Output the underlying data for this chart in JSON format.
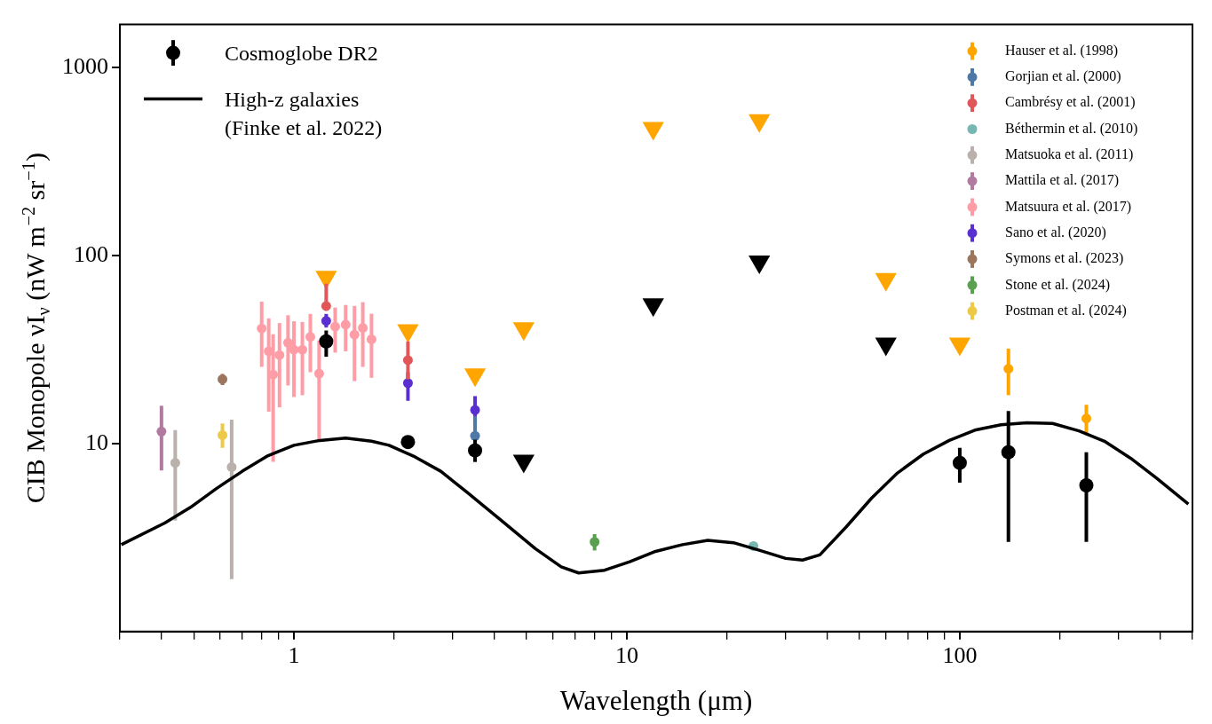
{
  "chart_data": {
    "type": "scatter",
    "xlabel": "Wavelength (μm)",
    "ylabel": "CIB Monopole νI$_{ν}$ (nW m$^{−2}$ sr$^{−1}$)",
    "log": "xy",
    "xlim": [
      0.3,
      500
    ],
    "ylim": [
      1,
      1700
    ],
    "xticks": [
      {
        "value": 0.3,
        "label": null
      },
      {
        "value": 0.4,
        "label": null
      },
      {
        "value": 0.5,
        "label": null
      },
      {
        "value": 0.6,
        "label": null
      },
      {
        "value": 0.7,
        "label": null
      },
      {
        "value": 0.8,
        "label": null
      },
      {
        "value": 0.9,
        "label": null
      },
      1,
      {
        "value": 2,
        "label": null
      },
      {
        "value": 3,
        "label": null
      },
      {
        "value": 4,
        "label": null
      },
      {
        "value": 5,
        "label": null
      },
      {
        "value": 6,
        "label": null
      },
      {
        "value": 7,
        "label": null
      },
      {
        "value": 8,
        "label": null
      },
      {
        "value": 9,
        "label": null
      },
      10,
      {
        "value": 20,
        "label": null
      },
      {
        "value": 30,
        "label": null
      },
      {
        "value": 40,
        "label": null
      },
      {
        "value": 50,
        "label": null
      },
      {
        "value": 60,
        "label": null
      },
      {
        "value": 70,
        "label": null
      },
      {
        "value": 80,
        "label": null
      },
      {
        "value": 90,
        "label": null
      },
      100,
      {
        "value": 200,
        "label": null
      },
      {
        "value": 300,
        "label": null
      },
      {
        "value": 400,
        "label": null
      },
      {
        "value": 500,
        "label": null
      }
    ],
    "yticks": [
      10,
      100,
      1000
    ],
    "grid": false,
    "legend": "top",
    "marker": "circle",
    "series": [
      {
        "name": "Cosmoglobe DR2",
        "color": "#000000",
        "x": [
          1.25,
          2.2,
          3.5,
          100,
          140,
          240
        ],
        "values": [
          35,
          10.2,
          9.2,
          7.9,
          9.0,
          6.0
        ],
        "errors": [
          [
            29,
            40
          ],
          [
            9.4,
            11
          ],
          [
            8,
            10.5
          ],
          [
            6.2,
            9.5
          ],
          [
            3.0,
            14.9
          ],
          [
            3.0,
            9.0
          ]
        ]
      },
      {
        "name": "High-z galaxies (Finke et al. 2022)",
        "type": "line",
        "color": "#000000",
        "marker": "none",
        "line_style": "solid",
        "x": [
          0.303,
          0.409,
          0.489,
          0.585,
          0.7,
          0.836,
          1.0,
          1.196,
          1.43,
          1.71,
          1.93,
          2.31,
          2.76,
          3.3,
          4.19,
          5.31,
          6.35,
          7.16,
          8.57,
          10.2,
          12.2,
          14.7,
          17.5,
          20.9,
          25.1,
          30.0,
          33.7,
          38.0,
          45.5,
          54.4,
          65.0,
          77.8,
          93.0,
          111,
          133,
          159,
          190,
          228,
          272,
          326,
          390,
          486
        ],
        "values": [
          2.9,
          3.78,
          4.58,
          5.77,
          7.13,
          8.63,
          9.8,
          10.4,
          10.7,
          10.3,
          9.8,
          8.5,
          7.13,
          5.54,
          3.91,
          2.76,
          2.21,
          2.05,
          2.12,
          2.35,
          2.67,
          2.9,
          3.06,
          2.97,
          2.7,
          2.45,
          2.4,
          2.56,
          3.59,
          5.14,
          6.98,
          8.8,
          10.4,
          11.8,
          12.6,
          12.9,
          12.8,
          11.7,
          10.3,
          8.36,
          6.56,
          4.77
        ]
      },
      {
        "name": "Hauser et al. (1998)",
        "color": "#ffa500",
        "x": [
          140,
          240
        ],
        "values": [
          25,
          13.6
        ],
        "errors": [
          [
            18.1,
            32
          ],
          [
            11.1,
            16.1
          ]
        ]
      },
      {
        "name": "Gorjian et al. (2000)",
        "color": "#4e79a7",
        "x": [
          3.5
        ],
        "values": [
          11
        ],
        "errors": [
          [
            8,
            14
          ]
        ]
      },
      {
        "name": "Cambrésy et al. (2001)",
        "color": "#e15759",
        "x": [
          1.25,
          2.2
        ],
        "values": [
          54,
          27.8
        ],
        "errors": [
          [
            51,
            71
          ],
          [
            22,
            35
          ]
        ]
      },
      {
        "name": "Béthermin et al. (2010)",
        "color": "#76b7b2",
        "x": [
          24
        ],
        "values": [
          2.85
        ]
      },
      {
        "name": "Matsuoka et al. (2011)",
        "color": "#bab0ac",
        "x": [
          0.44,
          0.65
        ],
        "values": [
          7.9,
          7.5
        ],
        "errors": [
          [
            3.9,
            11.8
          ],
          [
            1.9,
            13.4
          ]
        ]
      },
      {
        "name": "Mattila et al. (2017)",
        "color": "#b07aa1",
        "x": [
          0.4
        ],
        "values": [
          11.6
        ],
        "errors": [
          [
            7.2,
            15.9
          ]
        ]
      },
      {
        "name": "Matsuura et al. (2017)",
        "color": "#ff9da7",
        "x": [
          0.8,
          0.84,
          0.866,
          0.905,
          0.96,
          1.0,
          1.06,
          1.12,
          1.19,
          1.33,
          1.43,
          1.52,
          1.61,
          1.71
        ],
        "values": [
          41,
          31,
          23.3,
          29.6,
          34.4,
          31.6,
          31.6,
          37,
          23.6,
          41.9,
          43,
          38,
          41.3,
          35.9
        ],
        "errors": [
          [
            25.6,
            57
          ],
          [
            14.8,
            46.4
          ],
          [
            8.0,
            38.2
          ],
          [
            15.6,
            43.8
          ],
          [
            20.4,
            48.2
          ],
          [
            17.7,
            44.8
          ],
          [
            18.1,
            44.4
          ],
          [
            24,
            49
          ],
          [
            10.2,
            35.4
          ],
          [
            30.5,
            53
          ],
          [
            31,
            54.7
          ],
          [
            21.5,
            54
          ],
          [
            25.6,
            56.6
          ],
          [
            22.4,
            49.1
          ]
        ]
      },
      {
        "name": "Sano et al. (2020)",
        "color": "#5a2fd0",
        "x": [
          1.25,
          2.2,
          3.5
        ],
        "values": [
          45,
          21,
          15.1
        ],
        "errors": [
          [
            41.5,
            49
          ],
          [
            16.9,
            24
          ],
          [
            12.7,
            17.9
          ]
        ]
      },
      {
        "name": "Symons et al. (2023)",
        "color": "#9c755f",
        "x": [
          0.61
        ],
        "values": [
          22
        ],
        "errors": [
          [
            20.5,
            23.5
          ]
        ]
      },
      {
        "name": "Stone et al. (2024)",
        "color": "#59a14f",
        "x": [
          8.0
        ],
        "values": [
          3.0
        ],
        "errors": [
          [
            2.7,
            3.3
          ]
        ]
      },
      {
        "name": "Postman et al. (2024)",
        "color": "#edc948",
        "x": [
          0.61
        ],
        "values": [
          11.1
        ],
        "errors": [
          [
            9.5,
            12.8
          ]
        ]
      },
      {
        "color": "#000000",
        "marker": "triangle",
        "x": [
          4.9,
          12,
          25,
          60
        ],
        "values": [
          8.1,
          55,
          93,
          34
        ]
      },
      {
        "color": "#ffa500",
        "marker": "triangle",
        "x": [
          1.25,
          2.2,
          3.5,
          4.9,
          12,
          25,
          60,
          100
        ],
        "values": [
          77,
          40,
          23.3,
          41,
          477,
          525,
          75,
          34
        ]
      }
    ]
  }
}
